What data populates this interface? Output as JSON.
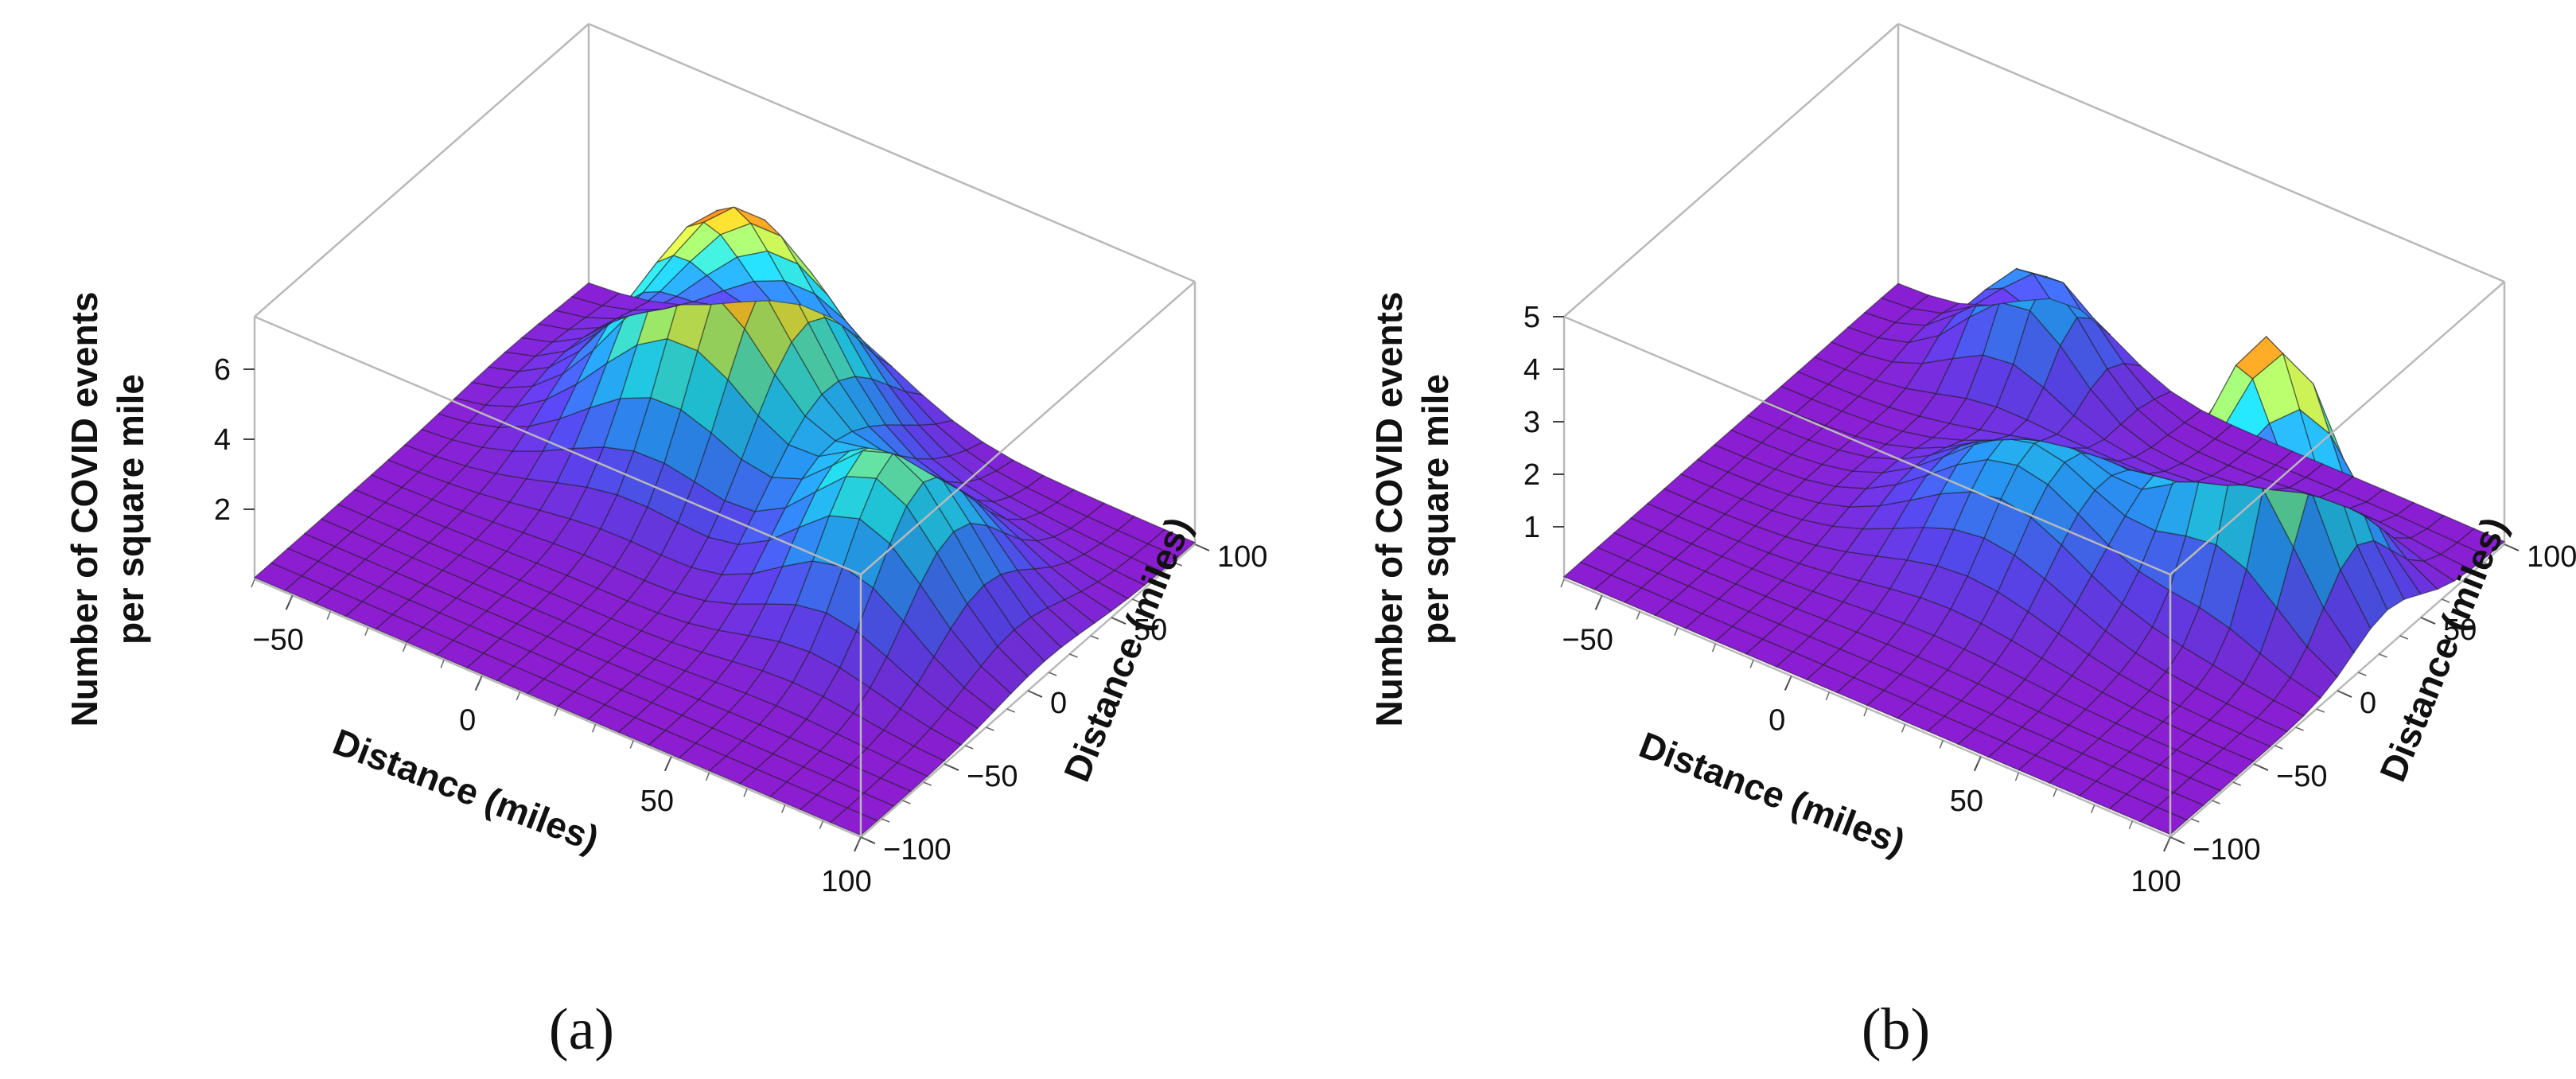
{
  "figure": {
    "colors": {
      "low": "#8e1bd0",
      "mid": "#22d3e6",
      "high": "#ff2a1a"
    }
  },
  "chart_data": [
    {
      "type": "surface",
      "panel_label": "(a)",
      "zlabel_line1": "Number of COVID events",
      "zlabel_line2": "per square mile",
      "xlabel": "Distance (miles)",
      "ylabel": "Distance (miles)",
      "xlim": [
        -60,
        100
      ],
      "ylim": [
        -100,
        100
      ],
      "zlim": [
        0,
        7.5
      ],
      "xticks": [
        -50,
        0,
        50,
        100
      ],
      "xtick_labels": [
        "−50",
        "0",
        "50",
        "100"
      ],
      "yticks": [
        -100,
        -50,
        0,
        50,
        100
      ],
      "ytick_labels": [
        "−100",
        "−50",
        "0",
        "50",
        "100"
      ],
      "zticks": [
        2,
        4,
        6
      ],
      "ztick_labels": [
        "2",
        "4",
        "6"
      ],
      "peaks": [
        {
          "x": 0,
          "y": 50,
          "height": 6.9,
          "sigma_x": 22,
          "sigma_y": 32
        },
        {
          "x": 60,
          "y": 10,
          "height": 4.4,
          "sigma_x": 18,
          "sigma_y": 28
        }
      ],
      "plateau": 7.2
    },
    {
      "type": "surface",
      "panel_label": "(b)",
      "zlabel_line1": "Number of COVID events",
      "zlabel_line2": "per square mile",
      "xlabel": "Distance (miles)",
      "ylabel": "Distance (miles)",
      "xlim": [
        -60,
        100
      ],
      "ylim": [
        -100,
        100
      ],
      "zlim": [
        0,
        5
      ],
      "xticks": [
        -50,
        0,
        50,
        100
      ],
      "xtick_labels": [
        "−50",
        "0",
        "50",
        "100"
      ],
      "yticks": [
        -100,
        -50,
        0,
        50,
        100
      ],
      "ytick_labels": [
        "−100",
        "−50",
        "0",
        "50",
        "100"
      ],
      "zticks": [
        1,
        2,
        3,
        4,
        5
      ],
      "ztick_labels": [
        "1",
        "2",
        "3",
        "4",
        "5"
      ],
      "peaks": [
        {
          "x": -15,
          "y": 80,
          "height": 2.2,
          "sigma_x": 14,
          "sigma_y": 16
        },
        {
          "x": 20,
          "y": 0,
          "height": 2.2,
          "sigma_x": 22,
          "sigma_y": 28
        },
        {
          "x": 70,
          "y": 30,
          "height": 4.8,
          "sigma_x": 15,
          "sigma_y": 20
        }
      ],
      "plateau": 5
    }
  ]
}
